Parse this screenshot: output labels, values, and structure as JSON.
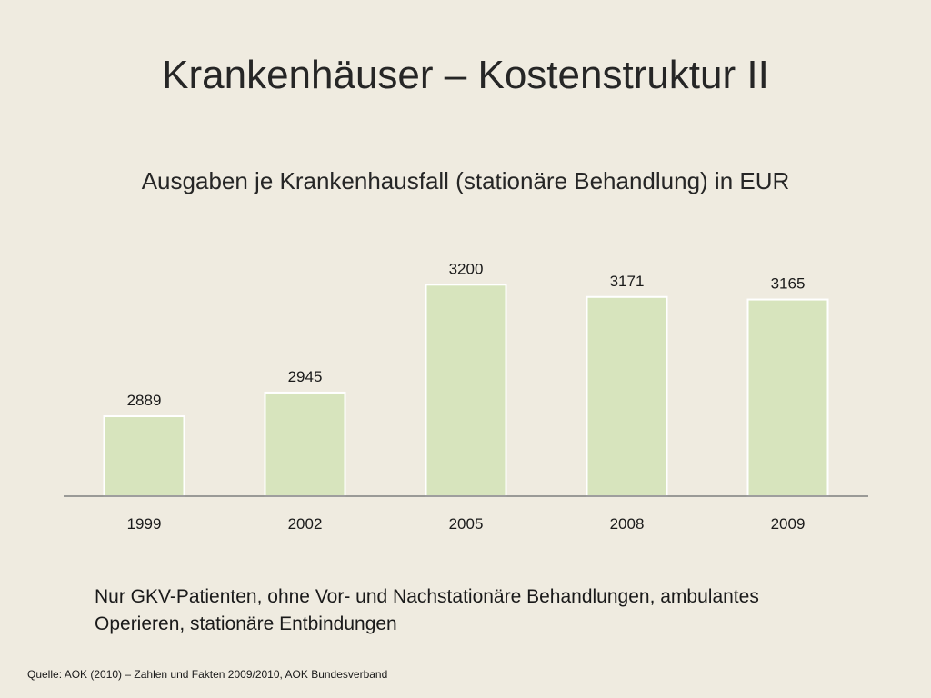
{
  "slide": {
    "title": "Krankenhäuser – Kostenstruktur II",
    "note_line1": "Nur GKV-Patienten, ohne Vor- und Nachstationäre Behandlungen, ambulantes",
    "note_line2": "Operieren, stationäre Entbindungen",
    "source": "Quelle: AOK (2010) – Zahlen und Fakten 2009/2010, AOK Bundesverband"
  },
  "colors": {
    "bar_fill": "#d7e4bd",
    "bar_stroke": "#ffffff",
    "axis": "#7f7f7f",
    "background": "#efebe0"
  },
  "chart_data": {
    "type": "bar",
    "title": "Ausgaben je Krankenhausfall (stationäre Behandlung) in EUR",
    "categories": [
      "1999",
      "2002",
      "2005",
      "2008",
      "2009"
    ],
    "values": [
      2889,
      2945,
      3200,
      3171,
      3165
    ],
    "xlabel": "",
    "ylabel": "",
    "ylim": [
      2700,
      3250
    ],
    "grid": false,
    "data_labels": true
  }
}
